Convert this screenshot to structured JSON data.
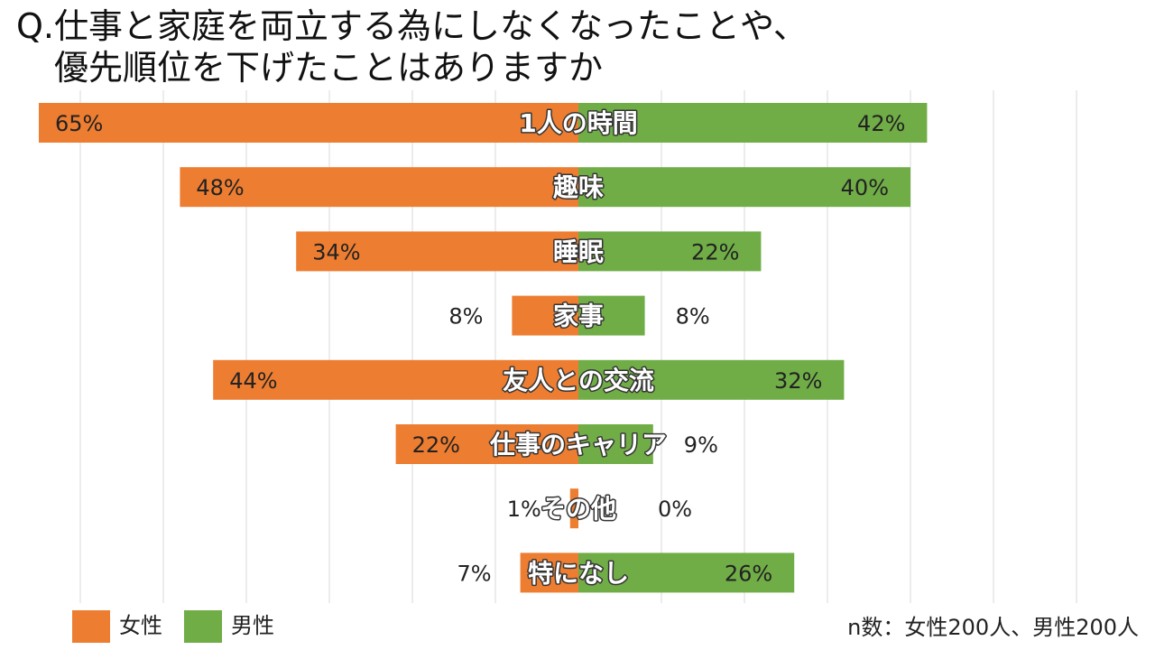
{
  "title": {
    "line1": "Q.仕事と家庭を両立する為にしなくなったことや、",
    "line2": "優先順位を下げたことはありますか"
  },
  "colors": {
    "female": "#ED7D31",
    "male": "#70AD47",
    "grid": "#D9D9D9",
    "text": "#222222"
  },
  "legend": {
    "female": "女性",
    "male": "男性"
  },
  "note": "n数：女性200人、男性200人",
  "chart_data": {
    "type": "bar",
    "orientation": "horizontal-diverging",
    "xlim": [
      -65,
      70
    ],
    "grid": true,
    "legend_position": "bottom-left",
    "categories": [
      "1人の時間",
      "趣味",
      "睡眠",
      "家事",
      "友人との交流",
      "仕事のキャリア",
      "その他",
      "特になし"
    ],
    "series": [
      {
        "name": "女性",
        "values": [
          65,
          48,
          34,
          8,
          44,
          22,
          1,
          7
        ],
        "labels": [
          "65%",
          "48%",
          "34%",
          "8%",
          "44%",
          "22%",
          "1%",
          "7%"
        ]
      },
      {
        "name": "男性",
        "values": [
          42,
          40,
          22,
          8,
          32,
          9,
          0,
          26
        ],
        "labels": [
          "42%",
          "40%",
          "22%",
          "8%",
          "32%",
          "9%",
          "0%",
          "26%"
        ]
      }
    ]
  }
}
